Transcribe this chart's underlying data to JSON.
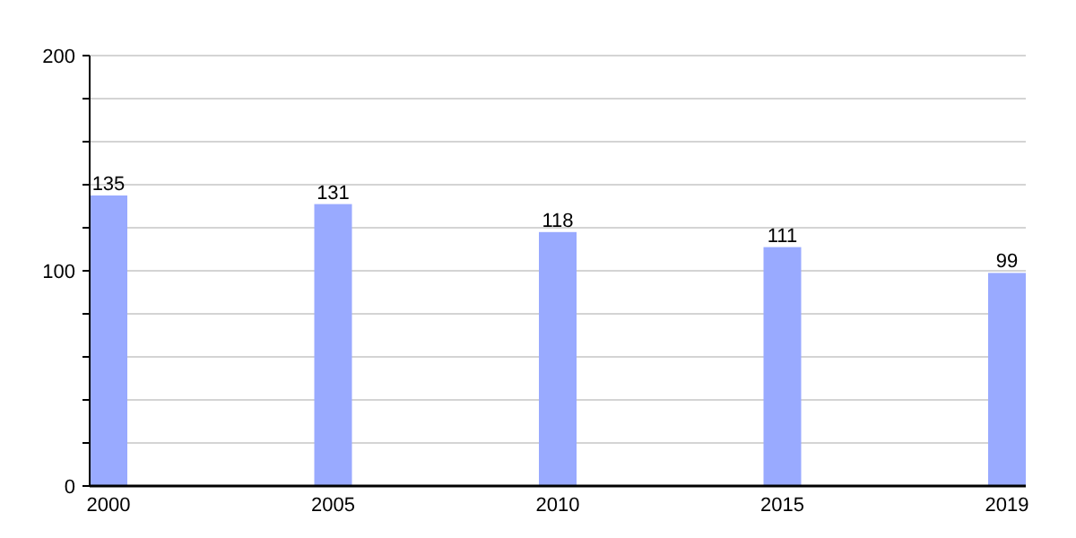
{
  "chart_data": {
    "type": "bar",
    "categories": [
      "2000",
      "2005",
      "2010",
      "2015",
      "2019"
    ],
    "values": [
      135,
      131,
      118,
      111,
      99
    ],
    "color": "#99aaff",
    "ylim": [
      0,
      200
    ],
    "yticks": [
      0,
      {
        "value": 20,
        "label": null
      },
      {
        "value": 40,
        "label": null
      },
      {
        "value": 60,
        "label": null
      },
      {
        "value": 80,
        "label": null
      },
      100,
      {
        "value": 120,
        "label": null
      },
      {
        "value": 140,
        "label": null
      },
      {
        "value": 160,
        "label": null
      },
      {
        "value": 180,
        "label": null
      },
      200
    ],
    "grid": true,
    "data_labels": true
  }
}
